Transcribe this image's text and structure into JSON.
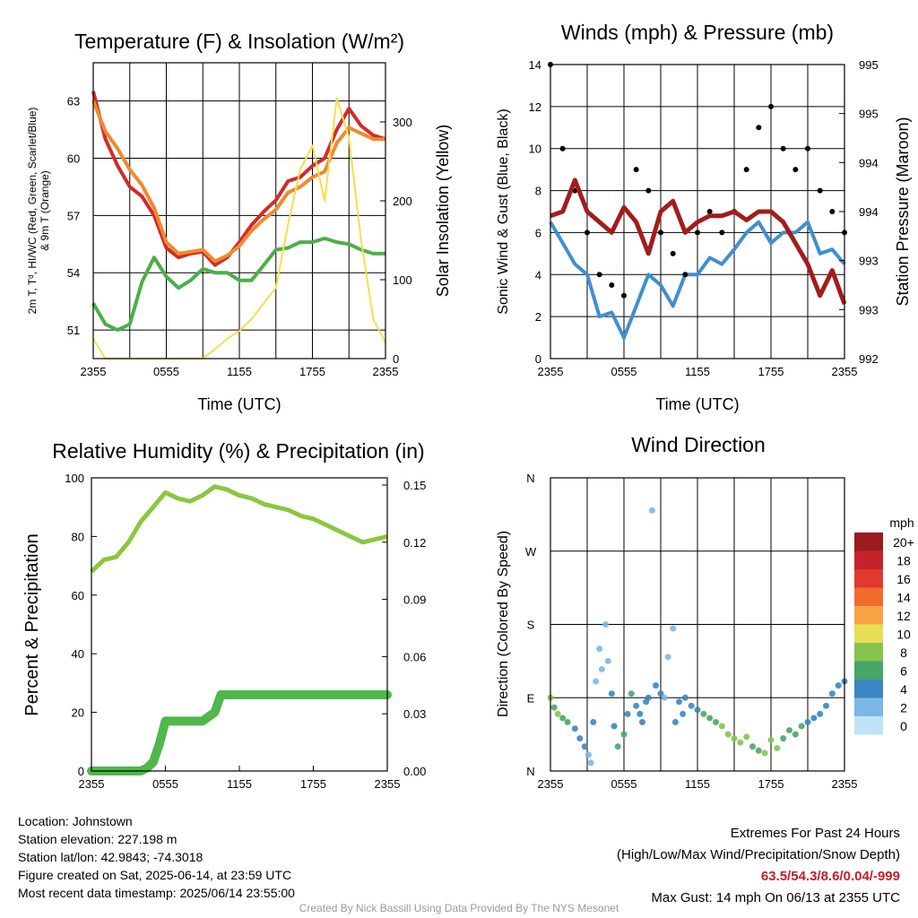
{
  "panels": {
    "temperature": {
      "title": "Temperature (F) & Insolation (W/m²)",
      "left_axis_label": "2m T, Tᵈ, HI/WC (Red, Green, Scarlet/Blue)",
      "left_axis_label_2": "& 9m T (Orange)",
      "right_axis_label": "Solar Insolation (Yellow)",
      "x_axis_label": "Time (UTC)"
    },
    "winds": {
      "title": "Winds (mph) & Pressure (mb)",
      "left_axis_label": "Sonic Wind & Gust (Blue, Black)",
      "right_axis_label": "Station Pressure (Maroon)",
      "x_axis_label": "Time (UTC)"
    },
    "humidity": {
      "title": "Relative Humidity (%) & Precipitation (in)",
      "left_axis_label": "Percent & Precipitation"
    },
    "direction": {
      "title": "Wind Direction",
      "left_axis_label": "Direction (Colored By Speed)"
    }
  },
  "colorbar": {
    "title": "mph",
    "labels": [
      "20+",
      "18",
      "16",
      "14",
      "12",
      "10",
      "8",
      "6",
      "4",
      "2",
      "0"
    ],
    "colors": [
      "#9b1b1e",
      "#c4232b",
      "#e03a2e",
      "#f26b2d",
      "#f9a344",
      "#e7dd57",
      "#86c34a",
      "#48a66b",
      "#3a86c2",
      "#7ab8e3",
      "#bfe3f6"
    ]
  },
  "info": {
    "location": "Location: Johnstown",
    "elevation": "Station elevation: 227.198 m",
    "latlon": "Station lat/lon: 42.9843; -74.3018",
    "created": "Figure created on Sat, 2025-06-14, at 23:59 UTC",
    "recent": "Most recent data timestamp: 2025/06/14 23:55:00",
    "extremes_title": "Extremes For Past 24 Hours",
    "extremes_sub": "(High/Low/Max Wind/Precipitation/Snow Depth)",
    "extremes_values": "63.5/54.3/8.6/0.04/-999",
    "max_gust": "Max Gust: 14 mph On 06/13 at 2355 UTC",
    "credit": "Created By Nick Bassill Using Data Provided By The NYS Mesonet"
  },
  "chart_data": [
    {
      "type": "line",
      "title": "Temperature (F) & Insolation (W/m²)",
      "xlabel": "Time (UTC)",
      "ylabel": "2m T, Tᵈ, HI/WC (Red, Green, Scarlet/Blue) & 9m T (Orange)",
      "y2label": "Solar Insolation (Yellow)",
      "x_ticks": [
        "2355",
        "0555",
        "1155",
        "1755",
        "2355"
      ],
      "x_hours": [
        0,
        3,
        6,
        9,
        12,
        15,
        18,
        21,
        24
      ],
      "ylim": [
        49.5,
        65
      ],
      "y_ticks": [
        51,
        54,
        57,
        60,
        63
      ],
      "y2lim": [
        0,
        375
      ],
      "y2_ticks": [
        0,
        100,
        200,
        300
      ],
      "grid": true,
      "series": [
        {
          "name": "2m T",
          "color": "#d42a2a",
          "axis": "left",
          "x": [
            0,
            1,
            2,
            3,
            4,
            5,
            6,
            7,
            8,
            9,
            10,
            11,
            12,
            13,
            14,
            15,
            16,
            17,
            18,
            19,
            20,
            21,
            22,
            23,
            24
          ],
          "y": [
            63.5,
            61.0,
            59.6,
            58.5,
            58.0,
            57.0,
            55.3,
            54.8,
            55.0,
            55.1,
            54.4,
            54.8,
            55.6,
            56.5,
            57.2,
            57.8,
            58.8,
            59.0,
            59.6,
            60.0,
            61.5,
            62.6,
            61.7,
            61.2,
            61.0
          ]
        },
        {
          "name": "9m T",
          "color": "#f08a2c",
          "axis": "left",
          "x": [
            0,
            1,
            2,
            3,
            4,
            5,
            6,
            7,
            8,
            9,
            10,
            11,
            12,
            13,
            14,
            15,
            16,
            17,
            18,
            19,
            20,
            21,
            22,
            23,
            24
          ],
          "y": [
            63.0,
            61.4,
            60.5,
            59.4,
            58.6,
            57.4,
            55.6,
            55.0,
            55.1,
            55.2,
            54.6,
            54.9,
            55.4,
            56.2,
            56.8,
            57.3,
            58.2,
            58.5,
            59.0,
            59.3,
            60.8,
            61.6,
            61.3,
            61.0,
            61.0
          ]
        },
        {
          "name": "Td",
          "color": "#4caf47",
          "axis": "left",
          "x": [
            0,
            1,
            2,
            3,
            4,
            5,
            6,
            7,
            8,
            9,
            10,
            11,
            12,
            13,
            14,
            15,
            16,
            17,
            18,
            19,
            20,
            21,
            22,
            23,
            24
          ],
          "y": [
            52.4,
            51.3,
            51.0,
            51.3,
            53.5,
            54.8,
            53.8,
            53.2,
            53.6,
            54.2,
            54.0,
            54.0,
            53.6,
            53.6,
            54.4,
            55.2,
            55.3,
            55.6,
            55.6,
            55.8,
            55.6,
            55.5,
            55.2,
            55.0,
            55.0
          ]
        },
        {
          "name": "Solar Insolation",
          "color": "#f4e04d",
          "axis": "right",
          "x": [
            0,
            1,
            2,
            3,
            4,
            5,
            6,
            7,
            8,
            9,
            10,
            11,
            12,
            13,
            14,
            15,
            16,
            17,
            18,
            19,
            20,
            21,
            22,
            23,
            24
          ],
          "y": [
            25,
            0,
            0,
            0,
            0,
            0,
            0,
            0,
            0,
            0,
            12,
            25,
            35,
            50,
            70,
            90,
            170,
            240,
            270,
            200,
            330,
            280,
            150,
            50,
            20
          ]
        }
      ]
    },
    {
      "type": "line",
      "title": "Winds (mph) & Pressure (mb)",
      "xlabel": "Time (UTC)",
      "ylabel": "Sonic Wind & Gust (Blue, Black)",
      "y2label": "Station Pressure (Maroon)",
      "x_ticks": [
        "2355",
        "0555",
        "1155",
        "1755",
        "2355"
      ],
      "ylim": [
        0,
        14
      ],
      "y_ticks": [
        0,
        2,
        4,
        6,
        8,
        10,
        12,
        14
      ],
      "y2_tick_labels": [
        "992",
        "993",
        "993",
        "994",
        "994",
        "995",
        "995"
      ],
      "grid": true,
      "series": [
        {
          "name": "Sonic Wind",
          "color": "#3f8fd0",
          "axis": "left",
          "x": [
            0,
            1,
            2,
            3,
            4,
            5,
            6,
            7,
            8,
            9,
            10,
            11,
            12,
            13,
            14,
            15,
            16,
            17,
            18,
            19,
            20,
            21,
            22,
            23,
            24
          ],
          "y": [
            6.5,
            5.5,
            4.5,
            4.0,
            2.0,
            2.2,
            1.0,
            2.5,
            4.0,
            3.5,
            2.5,
            4.0,
            4.0,
            4.8,
            4.5,
            5.2,
            6.0,
            6.5,
            5.5,
            6.0,
            6.0,
            6.5,
            5.0,
            5.2,
            4.5
          ]
        },
        {
          "name": "Gust",
          "color": "#000000",
          "axis": "left",
          "x": [
            0,
            1,
            2,
            3,
            4,
            5,
            6,
            7,
            8,
            9,
            10,
            11,
            12,
            13,
            14,
            15,
            16,
            17,
            18,
            19,
            20,
            21,
            22,
            23,
            24
          ],
          "y": [
            14,
            10,
            8,
            6,
            4,
            3.5,
            3,
            9,
            8,
            6,
            5,
            4,
            6,
            7,
            6,
            7,
            9,
            11,
            12,
            10,
            9,
            10,
            8,
            7,
            6
          ]
        },
        {
          "name": "Station Pressure",
          "color": "#a31c1c",
          "axis": "left",
          "x": [
            0,
            1,
            2,
            3,
            4,
            5,
            6,
            7,
            8,
            9,
            10,
            11,
            12,
            13,
            14,
            15,
            16,
            17,
            18,
            19,
            20,
            21,
            22,
            23,
            24
          ],
          "y": [
            6.8,
            7.0,
            8.5,
            7.0,
            6.5,
            6.0,
            7.2,
            6.5,
            5.0,
            7.0,
            7.5,
            6.0,
            6.5,
            6.8,
            6.8,
            7.0,
            6.6,
            7.0,
            7.0,
            6.5,
            5.5,
            4.5,
            3.0,
            4.2,
            2.6
          ]
        }
      ]
    },
    {
      "type": "line",
      "title": "Relative Humidity (%) & Precipitation (in)",
      "ylabel": "Percent & Precipitation",
      "x_ticks": [
        "2355",
        "0555",
        "1155",
        "1755",
        "2355"
      ],
      "ylim": [
        0,
        100
      ],
      "y_ticks": [
        0,
        20,
        40,
        60,
        80,
        100
      ],
      "y2_tick_labels": [
        "0.00",
        "0.03",
        "0.06",
        "0.09",
        "0.12",
        "0.15"
      ],
      "grid": false,
      "series": [
        {
          "name": "Relative Humidity",
          "color": "#8cc63f",
          "axis": "left",
          "x": [
            0,
            1,
            2,
            3,
            4,
            5,
            6,
            7,
            8,
            9,
            10,
            11,
            12,
            13,
            14,
            15,
            16,
            17,
            18,
            19,
            20,
            21,
            22,
            23,
            24
          ],
          "y": [
            68,
            72,
            73,
            78,
            85,
            90,
            95,
            93,
            92,
            94,
            97,
            96,
            94,
            93,
            91,
            90,
            89,
            87,
            86,
            84,
            82,
            80,
            78,
            79,
            80
          ]
        },
        {
          "name": "Precipitation",
          "color": "#4fb848",
          "axis": "left",
          "x": [
            0,
            1,
            2,
            3,
            4,
            4.5,
            5,
            5.5,
            6,
            7,
            8,
            9,
            10,
            10.5,
            11,
            12,
            14,
            16,
            18,
            20,
            22,
            24
          ],
          "y": [
            0,
            0,
            0,
            0,
            0,
            1,
            3,
            9,
            17,
            17,
            17,
            17,
            20,
            26,
            26,
            26,
            26,
            26,
            26,
            26,
            26,
            26
          ]
        }
      ]
    },
    {
      "type": "scatter",
      "title": "Wind Direction",
      "ylabel": "Direction (Colored By Speed)",
      "x_ticks": [
        "2355",
        "0555",
        "1155",
        "1755",
        "2355"
      ],
      "y_tick_labels": [
        "N",
        "E",
        "S",
        "W",
        "N"
      ],
      "ylim": [
        0,
        360
      ],
      "colorbar_title": "mph",
      "series": [
        {
          "name": "Direction",
          "x": [
            0,
            0.3,
            0.6,
            1.0,
            1.4,
            2.0,
            2.4,
            2.8,
            3.1,
            3.3,
            3.5,
            3.7,
            4.0,
            4.2,
            4.5,
            4.7,
            5.0,
            5.2,
            5.5,
            6.0,
            6.3,
            6.6,
            7.0,
            7.3,
            7.5,
            7.8,
            8.0,
            8.3,
            8.6,
            9.0,
            9.3,
            9.6,
            10.0,
            10.2,
            10.5,
            10.8,
            11.0,
            11.5,
            12.0,
            12.5,
            13.0,
            13.5,
            14.0,
            14.5,
            15.0,
            15.5,
            16.0,
            16.5,
            17.0,
            17.5,
            18.0,
            18.5,
            19.0,
            19.5,
            20.0,
            20.5,
            21.0,
            21.5,
            22.0,
            22.5,
            23.0,
            23.5,
            24.0
          ],
          "y": [
            90,
            78,
            70,
            65,
            60,
            52,
            40,
            30,
            20,
            10,
            60,
            110,
            150,
            125,
            180,
            135,
            95,
            55,
            30,
            45,
            70,
            95,
            80,
            70,
            60,
            85,
            90,
            320,
            105,
            95,
            90,
            140,
            175,
            60,
            85,
            70,
            90,
            80,
            75,
            70,
            65,
            60,
            55,
            45,
            40,
            35,
            42,
            30,
            25,
            22,
            38,
            28,
            40,
            50,
            45,
            55,
            60,
            65,
            70,
            80,
            95,
            105,
            110
          ],
          "speed": [
            7,
            6,
            7,
            6,
            5,
            4,
            4,
            3,
            2,
            2,
            3,
            2,
            2,
            2,
            1,
            2,
            4,
            4,
            5,
            5,
            4,
            6,
            4,
            3,
            3,
            4,
            3,
            1,
            3,
            4,
            2,
            2,
            2,
            3,
            4,
            4,
            4,
            4,
            4,
            5,
            6,
            6,
            7,
            7,
            8,
            8,
            7,
            6,
            6,
            7,
            8,
            7,
            6,
            5,
            6,
            5,
            4,
            4,
            4,
            4,
            3,
            4,
            4
          ]
        }
      ]
    }
  ]
}
